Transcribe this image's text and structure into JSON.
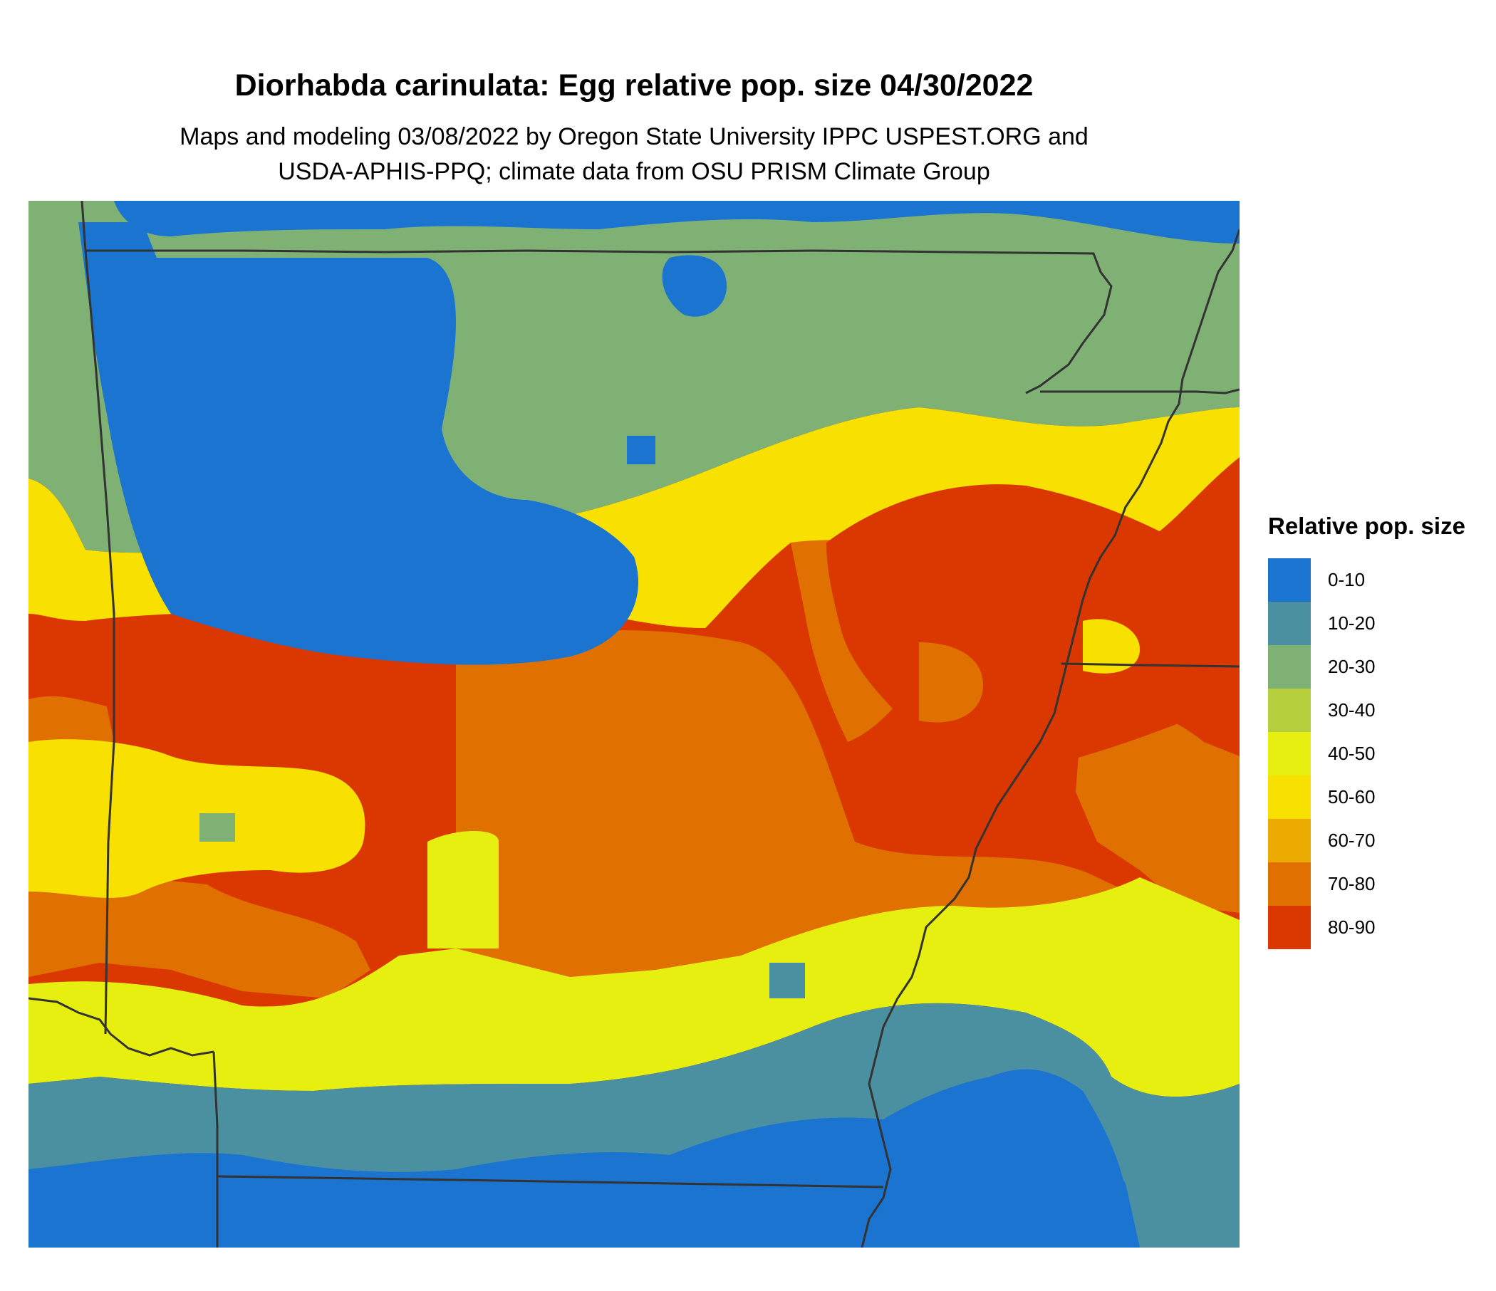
{
  "title": "Diorhabda carinulata: Egg relative pop. size 04/30/2022",
  "subtitle_line1": "Maps and modeling 03/08/2022 by Oregon State University IPPC USPEST.ORG and",
  "subtitle_line2": "USDA-APHIS-PPQ; climate data from OSU PRISM Climate Group",
  "legend": {
    "title": "Relative pop. size",
    "items": [
      {
        "label": "0-10",
        "color": "#1a74d0"
      },
      {
        "label": "10-20",
        "color": "#4a90a0"
      },
      {
        "label": "20-30",
        "color": "#7fb174"
      },
      {
        "label": "30-40",
        "color": "#b5d03c"
      },
      {
        "label": "40-50",
        "color": "#e6ef10"
      },
      {
        "label": "50-60",
        "color": "#f8e000"
      },
      {
        "label": "60-70",
        "color": "#eaaa00"
      },
      {
        "label": "70-80",
        "color": "#e07000"
      },
      {
        "label": "80-90",
        "color": "#da3800"
      }
    ]
  }
}
